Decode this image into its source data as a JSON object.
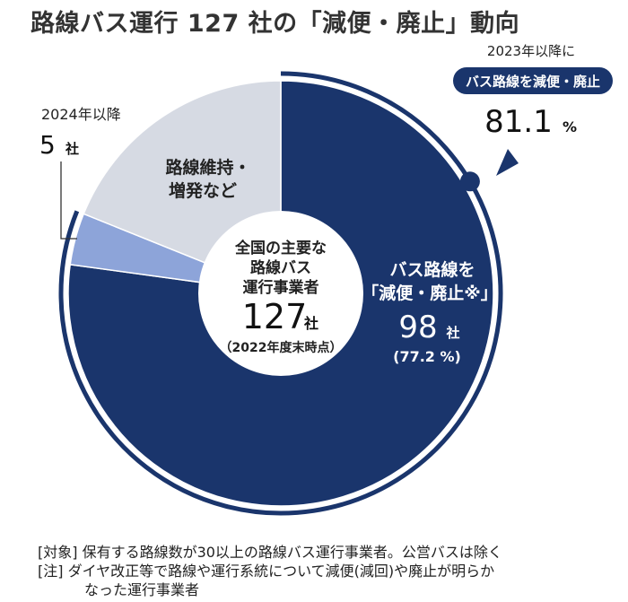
{
  "title": "路線バス運行 127 社の「減便・廃止」動向",
  "chart_data": {
    "type": "pie",
    "title": "路線バス運行 127 社の「減便・廃止」動向",
    "categories": [
      "バス路線を「減便・廃止※」",
      "2024年以降",
      "路線維持・増発など"
    ],
    "values": [
      98,
      5,
      24
    ],
    "total": 127,
    "percent_labels": {
      "reduced": "(77.2 %)"
    },
    "colors": {
      "reduced": "#1a356c",
      "y2024": "#8da4d9",
      "maintained": "#d6dae3",
      "outer_arc": "#1a356c"
    }
  },
  "center": {
    "line1": "全国の主要な",
    "line2": "路線バス",
    "line3": "運行事業者",
    "count": "127",
    "unit": "社",
    "date": "（2022年度末時点）"
  },
  "reduced_label": {
    "line1": "バス路線を",
    "line2": "「減便・廃止※」",
    "count": "98",
    "unit": "社",
    "percent": "(77.2 %)"
  },
  "maintained_label": {
    "line1": "路線維持・",
    "line2": "増発など"
  },
  "y2024_label": {
    "line1": "2024年以降",
    "count": "5",
    "unit": "社"
  },
  "callout": {
    "line1": "2023年以降に",
    "badge": "バス路線を減便・廃止",
    "value": "81.1",
    "unit": "%"
  },
  "notes": {
    "line1": "[対象]  保有する路線数が30以上の路線バス運行事業者。公営バスは除く",
    "line2": "[注]  ダイヤ改正等で路線や運行系統について減便(減回)や廃止が明らか",
    "line3": "なった運行事業者"
  }
}
